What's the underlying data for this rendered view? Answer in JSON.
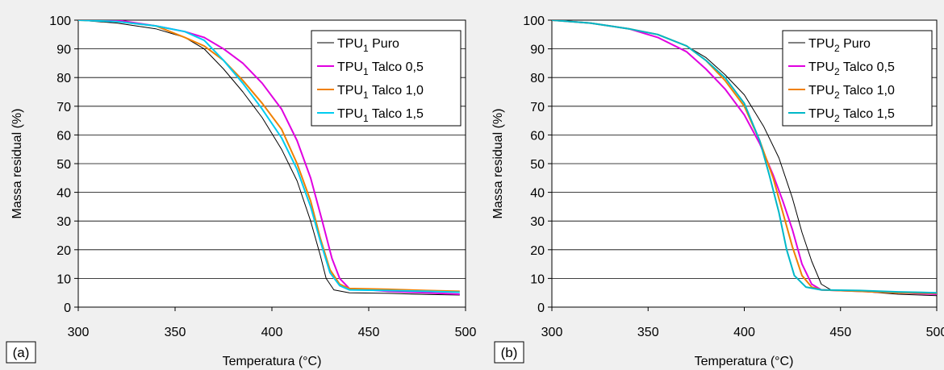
{
  "chart_data": [
    {
      "type": "line",
      "panel_label": "(a)",
      "xlabel": "Temperatura (°C)",
      "ylabel": "Massa residual (%)",
      "xlim": [
        300,
        500
      ],
      "ylim": [
        0,
        100
      ],
      "xticks": [
        300,
        350,
        400,
        450,
        500
      ],
      "yticks": [
        0,
        10,
        20,
        30,
        40,
        50,
        60,
        70,
        80,
        90,
        100
      ],
      "grid": "horizontal",
      "legend_position": "top-right",
      "series": [
        {
          "name": "TPU1 Puro",
          "base": "TPU",
          "sub": "1",
          "suffix": " Puro",
          "color": "#000000",
          "width": 1,
          "points": [
            [
              300,
              100
            ],
            [
              320,
              99
            ],
            [
              340,
              97
            ],
            [
              355,
              94
            ],
            [
              365,
              90
            ],
            [
              375,
              83
            ],
            [
              385,
              75
            ],
            [
              395,
              66
            ],
            [
              405,
              55
            ],
            [
              413,
              44
            ],
            [
              420,
              30
            ],
            [
              425,
              18
            ],
            [
              428,
              10
            ],
            [
              432,
              6
            ],
            [
              440,
              5
            ],
            [
              460,
              4.8
            ],
            [
              480,
              4.4
            ],
            [
              497,
              4.2
            ]
          ]
        },
        {
          "name": "TPU1 Talco 0,5",
          "base": "TPU",
          "sub": "1",
          "suffix": " Talco 0,5",
          "color": "#e000e0",
          "width": 2,
          "points": [
            [
              300,
              100
            ],
            [
              320,
              100
            ],
            [
              340,
              98
            ],
            [
              355,
              96
            ],
            [
              365,
              94
            ],
            [
              375,
              90
            ],
            [
              385,
              85
            ],
            [
              395,
              78
            ],
            [
              405,
              69
            ],
            [
              413,
              58
            ],
            [
              420,
              45
            ],
            [
              426,
              30
            ],
            [
              431,
              17
            ],
            [
              435,
              10
            ],
            [
              440,
              6.5
            ],
            [
              460,
              5.5
            ],
            [
              480,
              5
            ],
            [
              497,
              4.5
            ]
          ]
        },
        {
          "name": "TPU1 Talco 1,0",
          "base": "TPU",
          "sub": "1",
          "suffix": " Talco 1,0",
          "color": "#f08000",
          "width": 2,
          "points": [
            [
              300,
              100
            ],
            [
              320,
              99.5
            ],
            [
              340,
              98
            ],
            [
              355,
              94
            ],
            [
              365,
              91
            ],
            [
              375,
              86
            ],
            [
              385,
              79
            ],
            [
              395,
              71
            ],
            [
              405,
              62
            ],
            [
              413,
              50
            ],
            [
              420,
              37
            ],
            [
              425,
              24
            ],
            [
              430,
              13
            ],
            [
              435,
              8
            ],
            [
              440,
              6.5
            ],
            [
              460,
              6.2
            ],
            [
              480,
              5.8
            ],
            [
              497,
              5.5
            ]
          ]
        },
        {
          "name": "TPU1 Talco 1,5",
          "base": "TPU",
          "sub": "1",
          "suffix": " Talco 1,5",
          "color": "#00ccf0",
          "width": 2,
          "points": [
            [
              300,
              100
            ],
            [
              320,
              99.5
            ],
            [
              340,
              98
            ],
            [
              355,
              96
            ],
            [
              365,
              93
            ],
            [
              375,
              86
            ],
            [
              385,
              78
            ],
            [
              395,
              69
            ],
            [
              405,
              59
            ],
            [
              413,
              48
            ],
            [
              420,
              35
            ],
            [
              425,
              23
            ],
            [
              430,
              12
            ],
            [
              435,
              7.5
            ],
            [
              440,
              6
            ],
            [
              460,
              5.8
            ],
            [
              480,
              5.5
            ],
            [
              497,
              5.2
            ]
          ]
        }
      ]
    },
    {
      "type": "line",
      "panel_label": "(b)",
      "xlabel": "Temperatura (°C)",
      "ylabel": "Massa residual (%)",
      "xlim": [
        300,
        500
      ],
      "ylim": [
        0,
        100
      ],
      "xticks": [
        300,
        350,
        400,
        450,
        500
      ],
      "yticks": [
        0,
        10,
        20,
        30,
        40,
        50,
        60,
        70,
        80,
        90,
        100
      ],
      "grid": "horizontal",
      "legend_position": "top-right",
      "series": [
        {
          "name": "TPU2 Puro",
          "base": "TPU",
          "sub": "2",
          "suffix": " Puro",
          "color": "#000000",
          "width": 1,
          "points": [
            [
              300,
              100
            ],
            [
              320,
              99
            ],
            [
              340,
              97
            ],
            [
              355,
              95
            ],
            [
              370,
              91
            ],
            [
              380,
              87
            ],
            [
              390,
              81
            ],
            [
              400,
              74
            ],
            [
              410,
              63
            ],
            [
              418,
              52
            ],
            [
              425,
              38
            ],
            [
              430,
              26
            ],
            [
              435,
              16
            ],
            [
              440,
              8
            ],
            [
              445,
              6
            ],
            [
              460,
              5.5
            ],
            [
              480,
              4.5
            ],
            [
              500,
              4
            ]
          ]
        },
        {
          "name": "TPU2 Talco 0,5",
          "base": "TPU",
          "sub": "2",
          "suffix": " Talco 0,5",
          "color": "#e000e0",
          "width": 2,
          "points": [
            [
              300,
              100
            ],
            [
              320,
              99
            ],
            [
              340,
              97
            ],
            [
              355,
              94
            ],
            [
              370,
              89
            ],
            [
              380,
              83
            ],
            [
              390,
              76
            ],
            [
              400,
              67
            ],
            [
              408,
              57
            ],
            [
              415,
              46
            ],
            [
              420,
              37
            ],
            [
              425,
              27
            ],
            [
              430,
              15
            ],
            [
              435,
              8
            ],
            [
              440,
              6
            ],
            [
              460,
              5.5
            ],
            [
              480,
              5
            ],
            [
              500,
              4.5
            ]
          ]
        },
        {
          "name": "TPU2 Talco 1,0",
          "base": "TPU",
          "sub": "2",
          "suffix": " Talco 1,0",
          "color": "#f08000",
          "width": 2,
          "points": [
            [
              300,
              100
            ],
            [
              320,
              99
            ],
            [
              340,
              97
            ],
            [
              355,
              95
            ],
            [
              370,
              91
            ],
            [
              380,
              86
            ],
            [
              390,
              79
            ],
            [
              400,
              70
            ],
            [
              408,
              58
            ],
            [
              415,
              45
            ],
            [
              420,
              33
            ],
            [
              425,
              21
            ],
            [
              430,
              11
            ],
            [
              435,
              7
            ],
            [
              440,
              6
            ],
            [
              460,
              5.5
            ],
            [
              480,
              5
            ],
            [
              500,
              4.8
            ]
          ]
        },
        {
          "name": "TPU2 Talco 1,5",
          "base": "TPU",
          "sub": "2",
          "suffix": " Talco 1,5",
          "color": "#00b8c8",
          "width": 2,
          "points": [
            [
              300,
              100
            ],
            [
              320,
              99
            ],
            [
              340,
              97
            ],
            [
              355,
              95
            ],
            [
              370,
              91
            ],
            [
              380,
              86
            ],
            [
              390,
              80
            ],
            [
              400,
              71
            ],
            [
              408,
              58
            ],
            [
              413,
              46
            ],
            [
              418,
              33
            ],
            [
              422,
              20
            ],
            [
              426,
              11
            ],
            [
              432,
              7
            ],
            [
              440,
              6
            ],
            [
              460,
              5.8
            ],
            [
              480,
              5.3
            ],
            [
              500,
              5
            ]
          ]
        }
      ]
    }
  ]
}
